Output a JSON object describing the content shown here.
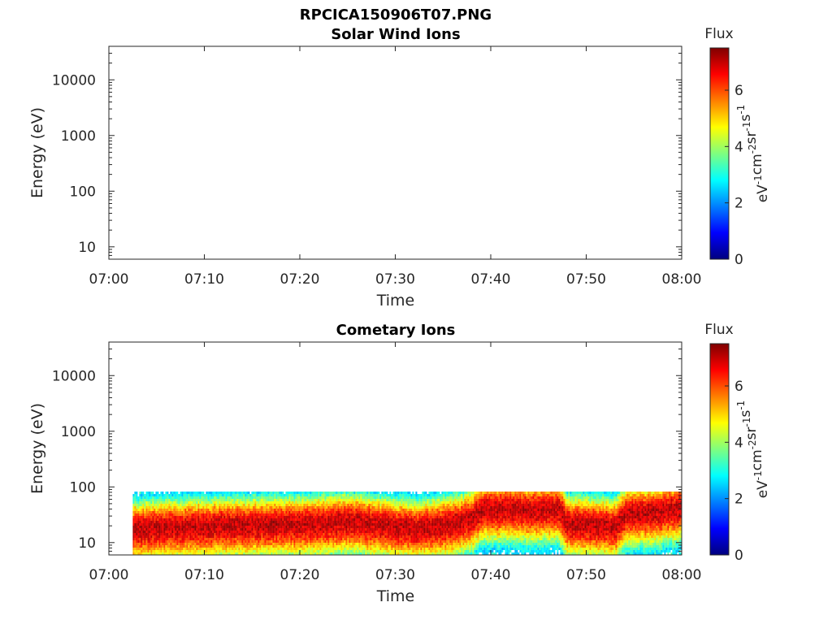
{
  "figure": {
    "title": "RPCICA150906T07.PNG"
  },
  "colorbar": {
    "label": "Flux",
    "units_base": [
      "eV",
      "cm",
      "sr",
      "s"
    ],
    "units_exp": [
      "-1",
      "-2",
      "-1",
      "-1"
    ],
    "range": [
      0,
      7.5
    ],
    "ticks": [
      "0",
      "2",
      "4",
      "6"
    ],
    "colormap": [
      "#00007f",
      "#0000ff",
      "#007fff",
      "#00ffff",
      "#7fff7f",
      "#ffff00",
      "#ff7f00",
      "#ff0000",
      "#7f0000"
    ]
  },
  "chart_data": [
    {
      "type": "heatmap",
      "title": "Solar Wind Ions",
      "xlabel": "Time",
      "ylabel": "Energy (eV)",
      "x_ticks": [
        "07:00",
        "07:10",
        "07:20",
        "07:30",
        "07:40",
        "07:50",
        "08:00"
      ],
      "y_ticks": [
        "10",
        "100",
        "1000",
        "10000"
      ],
      "y_scale": "log",
      "ylim": [
        6,
        40000
      ],
      "xlim_minutes": [
        0,
        60
      ],
      "data": []
    },
    {
      "type": "heatmap",
      "title": "Cometary Ions",
      "xlabel": "Time",
      "ylabel": "Energy (eV)",
      "x_ticks": [
        "07:00",
        "07:10",
        "07:20",
        "07:30",
        "07:40",
        "07:50",
        "08:00"
      ],
      "y_ticks": [
        "10",
        "100",
        "1000",
        "10000"
      ],
      "y_scale": "log",
      "ylim": [
        6,
        40000
      ],
      "xlim_minutes": [
        0,
        60
      ],
      "data_start_minute": 2.5,
      "peak_energy_profile": [
        {
          "minute": 2.5,
          "energy": 18
        },
        {
          "minute": 10,
          "energy": 20
        },
        {
          "minute": 20,
          "energy": 22
        },
        {
          "minute": 25,
          "energy": 24
        },
        {
          "minute": 32,
          "energy": 18
        },
        {
          "minute": 36,
          "energy": 22
        },
        {
          "minute": 38,
          "energy": 28
        },
        {
          "minute": 39,
          "energy": 40
        },
        {
          "minute": 47,
          "energy": 40
        },
        {
          "minute": 48,
          "energy": 22
        },
        {
          "minute": 53,
          "energy": 20
        },
        {
          "minute": 54,
          "energy": 32
        },
        {
          "minute": 60,
          "energy": 42
        }
      ],
      "peak_flux": 7,
      "band_low_energy": 6,
      "band_high_energy": 80
    }
  ]
}
